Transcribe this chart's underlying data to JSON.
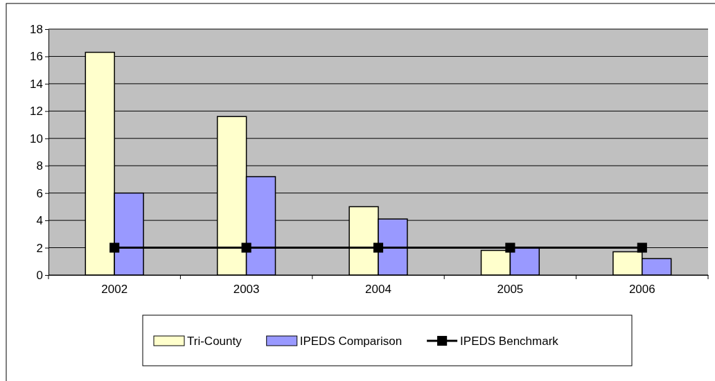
{
  "chart_data": {
    "type": "bar",
    "categories": [
      "2002",
      "2003",
      "2004",
      "2005",
      "2006"
    ],
    "series": [
      {
        "name": "Tri-County",
        "color": "#ffffcc",
        "values": [
          16.3,
          11.6,
          5.0,
          1.8,
          1.7
        ]
      },
      {
        "name": "IPEDS Comparison",
        "color": "#9999ff",
        "values": [
          6.0,
          7.2,
          4.1,
          2.0,
          1.2
        ]
      },
      {
        "name": "IPEDS Benchmark",
        "type": "line",
        "color": "#000000",
        "marker": "square",
        "values": [
          2,
          2,
          2,
          2,
          2
        ]
      }
    ],
    "ylim": [
      0,
      18
    ],
    "yticks": [
      0,
      2,
      4,
      6,
      8,
      10,
      12,
      14,
      16,
      18
    ],
    "grid": "y",
    "legend": "bottom"
  }
}
